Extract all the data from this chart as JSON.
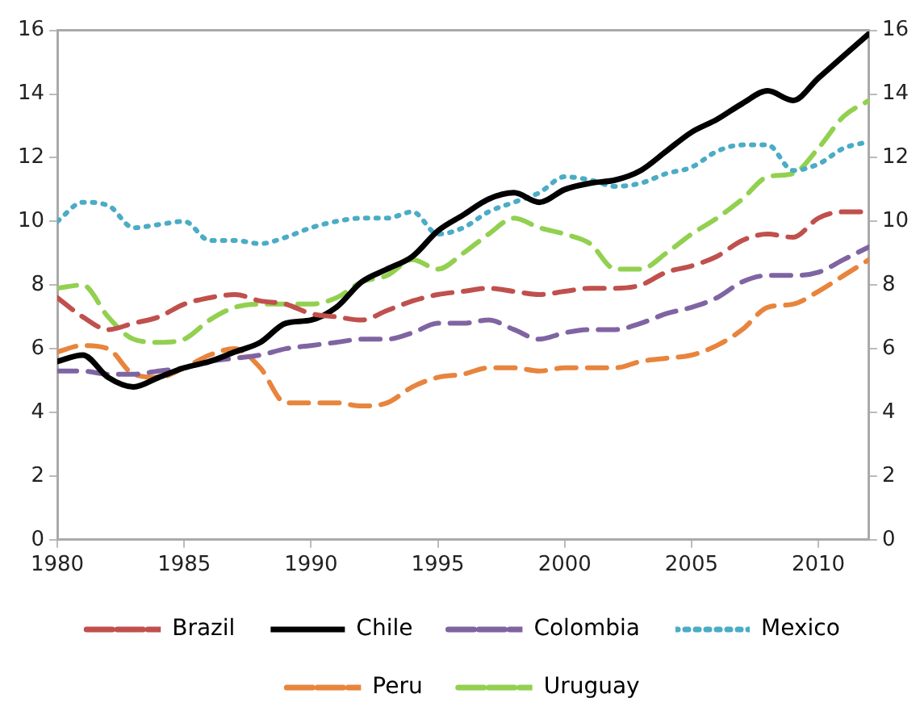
{
  "chart_data": {
    "type": "line",
    "x": [
      1980,
      1981,
      1982,
      1983,
      1984,
      1985,
      1986,
      1987,
      1988,
      1989,
      1990,
      1991,
      1992,
      1993,
      1994,
      1995,
      1996,
      1997,
      1998,
      1999,
      2000,
      2001,
      2002,
      2003,
      2004,
      2005,
      2006,
      2007,
      2008,
      2009,
      2010,
      2011,
      2012
    ],
    "xlim": [
      1980,
      2012
    ],
    "xticks": [
      1980,
      1985,
      1990,
      1995,
      2000,
      2005,
      2010
    ],
    "ylim": [
      0,
      16
    ],
    "yticks": [
      0,
      2,
      4,
      6,
      8,
      10,
      12,
      14,
      16
    ],
    "y2lim": [
      0,
      16
    ],
    "y2ticks": [
      0,
      2,
      4,
      6,
      8,
      10,
      12,
      14,
      16
    ],
    "grid": false,
    "legend": "bottom",
    "marker": "none",
    "series": [
      {
        "name": "Brazil",
        "color": "#c0504d",
        "line_style": "dashed",
        "values": [
          7.6,
          7.0,
          6.6,
          6.8,
          7.0,
          7.4,
          7.6,
          7.7,
          7.5,
          7.4,
          7.1,
          7.0,
          6.9,
          7.2,
          7.5,
          7.7,
          7.8,
          7.9,
          7.8,
          7.7,
          7.8,
          7.9,
          7.9,
          8.0,
          8.4,
          8.6,
          8.9,
          9.4,
          9.6,
          9.5,
          10.1,
          10.3,
          10.3
        ]
      },
      {
        "name": "Chile",
        "color": "#000000",
        "line_style": "solid",
        "values": [
          5.6,
          5.8,
          5.1,
          4.8,
          5.1,
          5.4,
          5.6,
          5.9,
          6.2,
          6.8,
          6.9,
          7.3,
          8.1,
          8.5,
          8.9,
          9.7,
          10.2,
          10.7,
          10.9,
          10.6,
          11.0,
          11.2,
          11.3,
          11.6,
          12.2,
          12.8,
          13.2,
          13.7,
          14.1,
          13.8,
          14.5,
          15.2,
          15.9
        ]
      },
      {
        "name": "Colombia",
        "color": "#8064a2",
        "line_style": "dashed",
        "values": [
          5.3,
          5.3,
          5.2,
          5.2,
          5.3,
          5.4,
          5.6,
          5.7,
          5.8,
          6.0,
          6.1,
          6.2,
          6.3,
          6.3,
          6.5,
          6.8,
          6.8,
          6.9,
          6.6,
          6.3,
          6.5,
          6.6,
          6.6,
          6.8,
          7.1,
          7.3,
          7.6,
          8.1,
          8.3,
          8.3,
          8.4,
          8.8,
          9.2
        ]
      },
      {
        "name": "Mexico",
        "color": "#4bacc6",
        "line_style": "dotted",
        "values": [
          10.0,
          10.6,
          10.5,
          9.8,
          9.9,
          10.0,
          9.4,
          9.4,
          9.3,
          9.5,
          9.8,
          10.0,
          10.1,
          10.1,
          10.3,
          9.6,
          9.8,
          10.3,
          10.6,
          10.9,
          11.4,
          11.3,
          11.1,
          11.2,
          11.5,
          11.7,
          12.2,
          12.4,
          12.4,
          11.6,
          11.8,
          12.3,
          12.5
        ]
      },
      {
        "name": "Peru",
        "color": "#e8843c",
        "line_style": "dashed",
        "values": [
          5.9,
          6.1,
          6.0,
          5.2,
          5.1,
          5.4,
          5.8,
          6.0,
          5.4,
          4.3,
          4.3,
          4.3,
          4.2,
          4.3,
          4.8,
          5.1,
          5.2,
          5.4,
          5.4,
          5.3,
          5.4,
          5.4,
          5.4,
          5.6,
          5.7,
          5.8,
          6.1,
          6.6,
          7.3,
          7.4,
          7.8,
          8.3,
          8.8
        ]
      },
      {
        "name": "Uruguay",
        "color": "#92d050",
        "line_style": "dashed",
        "values": [
          7.9,
          8.0,
          7.0,
          6.3,
          6.2,
          6.3,
          6.9,
          7.3,
          7.4,
          7.4,
          7.4,
          7.6,
          8.1,
          8.3,
          8.8,
          8.5,
          9.0,
          9.6,
          10.1,
          9.8,
          9.6,
          9.3,
          8.5,
          8.5,
          9.0,
          9.6,
          10.1,
          10.7,
          11.4,
          11.5,
          12.3,
          13.3,
          13.8
        ]
      }
    ]
  }
}
